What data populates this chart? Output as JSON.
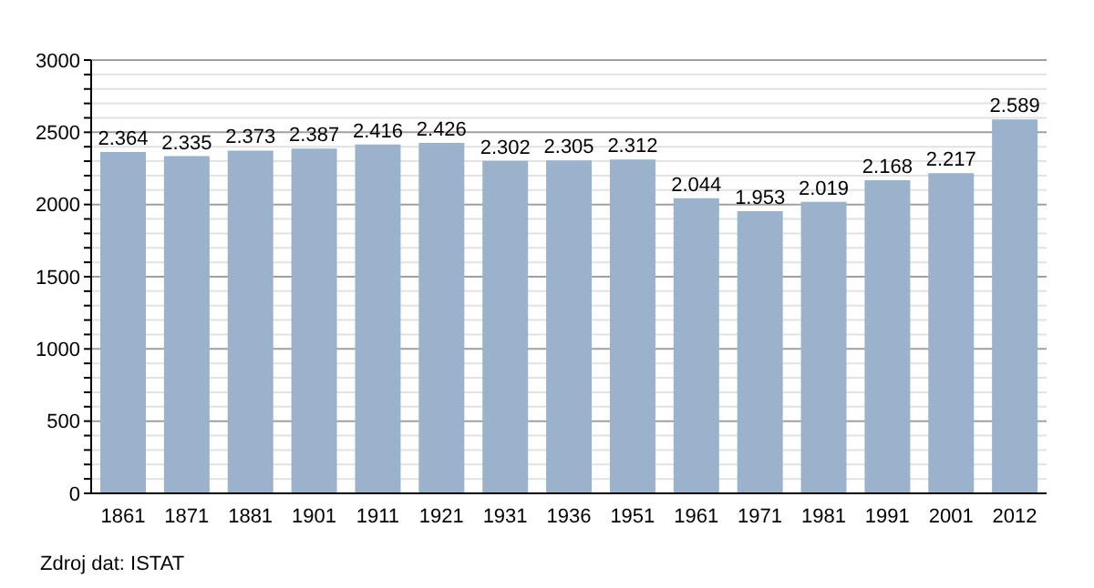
{
  "chart_data": {
    "type": "bar",
    "categories": [
      "1861",
      "1871",
      "1881",
      "1901",
      "1911",
      "1921",
      "1931",
      "1936",
      "1951",
      "1961",
      "1971",
      "1981",
      "1991",
      "2001",
      "2012"
    ],
    "values": [
      2364,
      2335,
      2373,
      2387,
      2416,
      2426,
      2302,
      2305,
      2312,
      2044,
      1953,
      2019,
      2168,
      2217,
      2589
    ],
    "value_labels": [
      "2.364",
      "2.335",
      "2.373",
      "2.387",
      "2.416",
      "2.426",
      "2.302",
      "2.305",
      "2.312",
      "2.044",
      "1.953",
      "2.019",
      "2.168",
      "2.217",
      "2.589"
    ],
    "color": "#9ab2cc",
    "ylim": [
      0,
      3000
    ],
    "yticks": [
      0,
      {
        "value": 100,
        "label": null
      },
      {
        "value": 200,
        "label": null
      },
      {
        "value": 300,
        "label": null
      },
      {
        "value": 400,
        "label": null
      },
      500,
      {
        "value": 600,
        "label": null
      },
      {
        "value": 700,
        "label": null
      },
      {
        "value": 800,
        "label": null
      },
      {
        "value": 900,
        "label": null
      },
      1000,
      {
        "value": 1100,
        "label": null
      },
      {
        "value": 1200,
        "label": null
      },
      {
        "value": 1300,
        "label": null
      },
      {
        "value": 1400,
        "label": null
      },
      1500,
      {
        "value": 1600,
        "label": null
      },
      {
        "value": 1700,
        "label": null
      },
      {
        "value": 1800,
        "label": null
      },
      {
        "value": 1900,
        "label": null
      },
      2000,
      {
        "value": 2100,
        "label": null
      },
      {
        "value": 2200,
        "label": null
      },
      {
        "value": 2300,
        "label": null
      },
      {
        "value": 2400,
        "label": null
      },
      2500,
      {
        "value": 2600,
        "label": null
      },
      {
        "value": 2700,
        "label": null
      },
      {
        "value": 2800,
        "label": null
      },
      {
        "value": 2900,
        "label": null
      },
      3000
    ],
    "grid": "y",
    "annotations": [
      "Zdroj dat: ISTAT"
    ]
  }
}
